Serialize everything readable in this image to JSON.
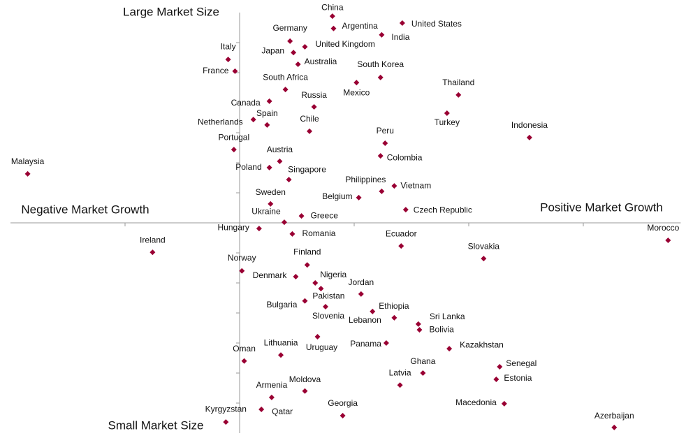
{
  "chart_data": {
    "type": "scatter",
    "annotations": [
      "Large Market Size",
      "Negative Market Growth",
      "Positive Market Growth",
      "Small Market Size"
    ],
    "labels": [
      "China",
      "Argentina",
      "United States",
      "India",
      "Germany",
      "United Kingdom",
      "Japan",
      "Italy",
      "Australia",
      "France",
      "South Korea",
      "Mexico",
      "South Africa",
      "Thailand",
      "Canada",
      "Russia",
      "Turkey",
      "Netherlands",
      "Spain",
      "Chile",
      "Indonesia",
      "Peru",
      "Portugal",
      "Colombia",
      "Austria",
      "Poland",
      "Malaysia",
      "Singapore",
      "Vietnam",
      "Philippines",
      "Belgium",
      "Sweden",
      "Czech Republic",
      "Greece",
      "Ukraine",
      "Hungary",
      "Romania",
      "Morocco",
      "Ecuador",
      "Ireland",
      "Slovakia",
      "Finland",
      "Norway",
      "Denmark",
      "Nigeria",
      "Pakistan",
      "Jordan",
      "Bulgaria",
      "Slovenia",
      "Ethiopia",
      "Lebanon",
      "Sri Lanka",
      "Bolivia",
      "Uruguay",
      "Panama",
      "Kazakhstan",
      "Lithuania",
      "Oman",
      "Senegal",
      "Ghana",
      "Estonia",
      "Latvia",
      "Moldova",
      "Armenia",
      "Macedonia",
      "Qatar",
      "Georgia",
      "Kyrgyzstan",
      "Azerbaijan"
    ],
    "x": [
      0.81,
      0.82,
      1.42,
      1.24,
      0.44,
      0.57,
      0.47,
      -0.1,
      0.51,
      -0.04,
      1.23,
      1.02,
      0.4,
      1.91,
      0.26,
      0.65,
      1.81,
      0.12,
      0.24,
      0.61,
      2.53,
      1.27,
      -0.05,
      1.23,
      0.35,
      0.26,
      -1.85,
      0.43,
      1.35,
      1.24,
      1.04,
      0.27,
      1.45,
      0.54,
      0.39,
      0.17,
      0.46,
      3.74,
      1.41,
      -0.76,
      2.13,
      0.59,
      0.02,
      0.49,
      0.66,
      0.71,
      1.06,
      0.57,
      0.75,
      1.16,
      1.35,
      1.56,
      1.57,
      0.68,
      1.28,
      1.83,
      0.36,
      0.04,
      2.27,
      1.6,
      2.24,
      1.4,
      0.57,
      0.28,
      2.31,
      0.19,
      0.9,
      -0.12,
      3.27
    ],
    "y": [
      6.88,
      6.47,
      6.65,
      6.26,
      6.05,
      5.86,
      5.67,
      5.44,
      5.28,
      5.05,
      4.84,
      4.67,
      4.44,
      4.26,
      4.05,
      3.86,
      3.65,
      3.44,
      3.26,
      3.05,
      2.84,
      2.65,
      2.44,
      2.23,
      2.05,
      1.84,
      1.63,
      1.44,
      1.23,
      1.05,
      0.84,
      0.63,
      0.44,
      0.23,
      0.02,
      -0.19,
      -0.37,
      -0.58,
      -0.77,
      -0.98,
      -1.19,
      -1.4,
      -1.6,
      -1.79,
      -2.0,
      -2.19,
      -2.37,
      -2.6,
      -2.79,
      -2.95,
      -3.16,
      -3.37,
      -3.56,
      -3.79,
      -4.0,
      -4.19,
      -4.4,
      -4.6,
      -4.79,
      -5.0,
      -5.21,
      -5.4,
      -5.6,
      -5.81,
      -6.02,
      -6.21,
      -6.42,
      -6.63,
      -6.81
    ],
    "color": "#990033",
    "xlim": [
      -2,
      3.85
    ],
    "ylim": [
      -7,
      7
    ],
    "xticks": [
      -1,
      0,
      1,
      2,
      3
    ],
    "yticks": [
      -6,
      -5,
      -4,
      -3,
      -2,
      -1,
      0,
      1,
      2,
      3,
      4,
      5,
      6
    ]
  }
}
